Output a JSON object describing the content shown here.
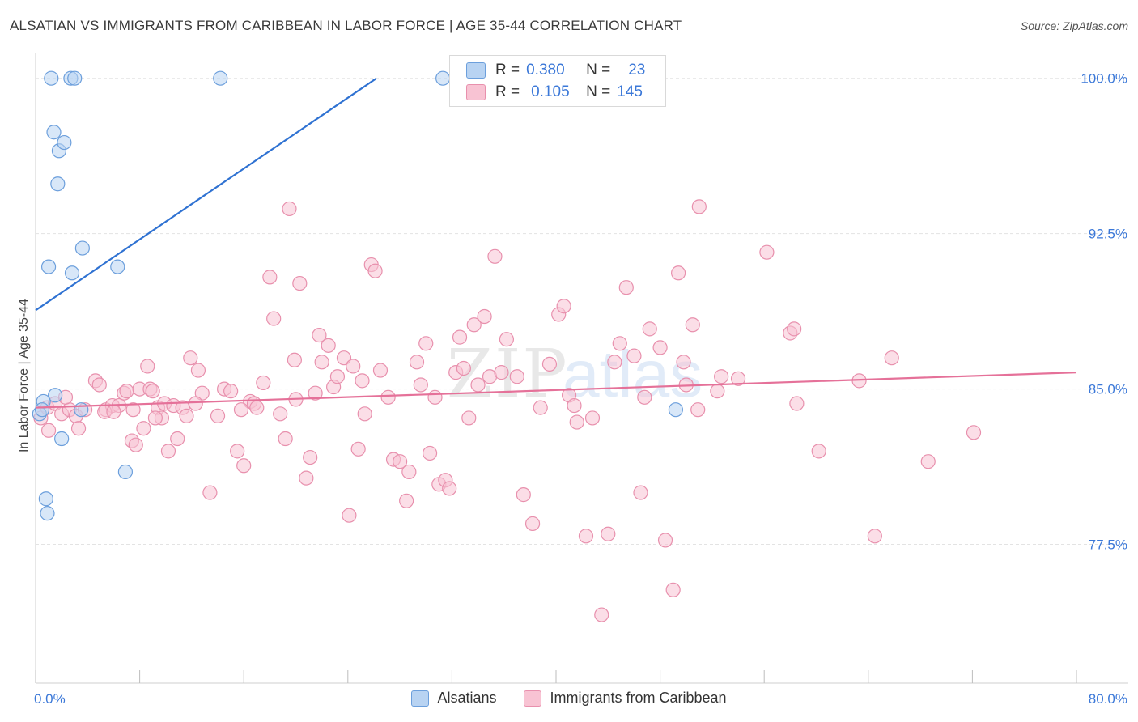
{
  "title": "ALSATIAN VS IMMIGRANTS FROM CARIBBEAN IN LABOR FORCE | AGE 35-44 CORRELATION CHART",
  "source": "Source: ZipAtlas.com",
  "watermark": {
    "zip": "ZIP",
    "atlas": "atlas"
  },
  "legend": {
    "r_label": "R =",
    "n_label": "N =",
    "rows": [
      {
        "r": "0.380",
        "n": "23"
      },
      {
        "r": "0.105",
        "n": "145"
      }
    ]
  },
  "colors": {
    "blue_fill": "#b8d3f2",
    "blue_stroke": "#6c9fdc",
    "blue_line": "#2f72d2",
    "pink_fill": "#f8c3d3",
    "pink_stroke": "#e890ad",
    "pink_line": "#e57199",
    "tick_text": "#3b78d8",
    "grid": "#e3e3e3"
  },
  "chart_data": {
    "type": "scatter",
    "title": "ALSATIAN VS IMMIGRANTS FROM CARIBBEAN IN LABOR FORCE | AGE 35-44 CORRELATION CHART",
    "xlabel": "",
    "ylabel": "In Labor Force | Age 35-44",
    "xlim": [
      0,
      80
    ],
    "ylim": [
      70.8,
      101.2
    ],
    "x_tick_labels": [
      {
        "value": 0,
        "label": "0.0%"
      },
      {
        "value": 80,
        "label": "80.0%"
      }
    ],
    "x_minor_ticks": [
      0,
      8,
      16,
      24,
      32,
      40,
      48,
      56,
      64,
      72,
      80
    ],
    "y_ticks": [
      {
        "value": 100.0,
        "label": "100.0%"
      },
      {
        "value": 92.5,
        "label": "92.5%"
      },
      {
        "value": 85.0,
        "label": "85.0%"
      },
      {
        "value": 77.5,
        "label": "77.5%"
      }
    ],
    "series": [
      {
        "name": "Alsatians",
        "R": 0.38,
        "N": 23,
        "trend": {
          "x": [
            0,
            26.2
          ],
          "y": [
            88.8,
            100.0
          ]
        },
        "points": [
          [
            1.2,
            100.0
          ],
          [
            2.7,
            100.0
          ],
          [
            3.0,
            100.0
          ],
          [
            14.2,
            100.0
          ],
          [
            31.3,
            100.0
          ],
          [
            1.4,
            97.4
          ],
          [
            1.8,
            96.5
          ],
          [
            2.2,
            96.9
          ],
          [
            1.7,
            94.9
          ],
          [
            3.6,
            91.8
          ],
          [
            1.0,
            90.9
          ],
          [
            2.8,
            90.6
          ],
          [
            6.3,
            90.9
          ],
          [
            1.5,
            84.7
          ],
          [
            0.6,
            84.4
          ],
          [
            0.3,
            83.8
          ],
          [
            0.5,
            84.0
          ],
          [
            3.5,
            84.0
          ],
          [
            2.0,
            82.6
          ],
          [
            6.9,
            81.0
          ],
          [
            0.8,
            79.7
          ],
          [
            0.9,
            79.0
          ],
          [
            49.2,
            84.0
          ]
        ]
      },
      {
        "name": "Immigrants from Caribbean",
        "R": 0.105,
        "N": 145,
        "trend": {
          "x": [
            0,
            80
          ],
          "y": [
            84.1,
            85.8
          ]
        },
        "points": [
          [
            0.4,
            83.6
          ],
          [
            0.9,
            84.1
          ],
          [
            1.5,
            84.3
          ],
          [
            2.0,
            83.8
          ],
          [
            2.6,
            84.0
          ],
          [
            3.1,
            83.7
          ],
          [
            3.8,
            84.0
          ],
          [
            4.6,
            85.4
          ],
          [
            4.9,
            85.2
          ],
          [
            5.4,
            84.0
          ],
          [
            5.9,
            84.2
          ],
          [
            6.4,
            84.2
          ],
          [
            6.8,
            84.8
          ],
          [
            7.0,
            84.9
          ],
          [
            7.4,
            82.5
          ],
          [
            7.5,
            84.0
          ],
          [
            7.7,
            82.3
          ],
          [
            8.0,
            85.0
          ],
          [
            8.3,
            83.1
          ],
          [
            8.6,
            86.1
          ],
          [
            8.8,
            85.0
          ],
          [
            9.0,
            84.9
          ],
          [
            9.4,
            84.1
          ],
          [
            9.7,
            83.6
          ],
          [
            9.9,
            84.3
          ],
          [
            10.2,
            82.0
          ],
          [
            10.6,
            84.2
          ],
          [
            10.9,
            82.6
          ],
          [
            11.3,
            84.1
          ],
          [
            11.6,
            83.7
          ],
          [
            11.9,
            86.5
          ],
          [
            12.5,
            85.9
          ],
          [
            12.8,
            84.8
          ],
          [
            13.4,
            80.0
          ],
          [
            14.0,
            83.7
          ],
          [
            14.5,
            85.0
          ],
          [
            15.0,
            84.9
          ],
          [
            15.5,
            82.0
          ],
          [
            16.0,
            81.3
          ],
          [
            16.5,
            84.4
          ],
          [
            16.8,
            84.3
          ],
          [
            17.0,
            84.1
          ],
          [
            17.5,
            85.3
          ],
          [
            18.0,
            90.4
          ],
          [
            18.3,
            88.4
          ],
          [
            18.8,
            83.8
          ],
          [
            19.2,
            82.6
          ],
          [
            19.5,
            93.7
          ],
          [
            19.9,
            86.4
          ],
          [
            20.3,
            90.1
          ],
          [
            20.8,
            80.7
          ],
          [
            21.1,
            81.7
          ],
          [
            21.5,
            84.8
          ],
          [
            21.8,
            87.6
          ],
          [
            22.0,
            86.3
          ],
          [
            22.5,
            87.1
          ],
          [
            22.9,
            85.1
          ],
          [
            23.2,
            85.6
          ],
          [
            23.7,
            86.5
          ],
          [
            24.1,
            78.9
          ],
          [
            24.4,
            86.1
          ],
          [
            24.8,
            82.1
          ],
          [
            25.1,
            85.4
          ],
          [
            25.3,
            83.8
          ],
          [
            25.8,
            91.0
          ],
          [
            26.1,
            90.7
          ],
          [
            26.5,
            85.9
          ],
          [
            27.1,
            84.6
          ],
          [
            27.5,
            81.6
          ],
          [
            28.0,
            81.5
          ],
          [
            28.5,
            79.6
          ],
          [
            28.7,
            81.0
          ],
          [
            29.3,
            86.3
          ],
          [
            29.6,
            85.2
          ],
          [
            30.0,
            87.2
          ],
          [
            30.3,
            81.9
          ],
          [
            30.7,
            84.6
          ],
          [
            31.0,
            80.4
          ],
          [
            31.5,
            80.6
          ],
          [
            31.8,
            80.2
          ],
          [
            32.3,
            85.8
          ],
          [
            32.6,
            87.5
          ],
          [
            32.9,
            86.0
          ],
          [
            33.3,
            83.6
          ],
          [
            33.7,
            88.1
          ],
          [
            34.0,
            85.2
          ],
          [
            34.5,
            88.5
          ],
          [
            34.9,
            85.6
          ],
          [
            35.3,
            91.4
          ],
          [
            35.8,
            85.8
          ],
          [
            36.2,
            87.4
          ],
          [
            37.0,
            85.6
          ],
          [
            37.5,
            79.9
          ],
          [
            38.2,
            78.5
          ],
          [
            38.8,
            84.1
          ],
          [
            39.5,
            86.2
          ],
          [
            40.2,
            88.6
          ],
          [
            40.6,
            89.0
          ],
          [
            41.0,
            84.7
          ],
          [
            41.4,
            84.2
          ],
          [
            41.6,
            83.4
          ],
          [
            42.3,
            77.9
          ],
          [
            42.8,
            83.6
          ],
          [
            43.5,
            74.1
          ],
          [
            44.0,
            78.0
          ],
          [
            44.5,
            86.3
          ],
          [
            44.9,
            87.2
          ],
          [
            45.4,
            89.9
          ],
          [
            46.0,
            86.6
          ],
          [
            46.5,
            80.0
          ],
          [
            46.8,
            84.6
          ],
          [
            47.2,
            87.9
          ],
          [
            48.0,
            87.0
          ],
          [
            48.4,
            77.7
          ],
          [
            49.0,
            75.3
          ],
          [
            49.4,
            90.6
          ],
          [
            49.8,
            86.3
          ],
          [
            50.0,
            85.2
          ],
          [
            50.5,
            88.1
          ],
          [
            50.9,
            84.0
          ],
          [
            51.0,
            93.8
          ],
          [
            52.4,
            84.9
          ],
          [
            52.7,
            85.6
          ],
          [
            54.0,
            85.5
          ],
          [
            56.2,
            91.6
          ],
          [
            58.0,
            87.7
          ],
          [
            58.3,
            87.9
          ],
          [
            58.5,
            84.3
          ],
          [
            60.2,
            82.0
          ],
          [
            63.3,
            85.4
          ],
          [
            64.5,
            77.9
          ],
          [
            65.8,
            86.5
          ],
          [
            68.6,
            81.5
          ],
          [
            72.1,
            82.9
          ],
          [
            1.0,
            83.0
          ],
          [
            2.3,
            84.6
          ],
          [
            3.3,
            83.1
          ],
          [
            5.3,
            83.9
          ],
          [
            6.0,
            83.9
          ],
          [
            9.2,
            83.6
          ],
          [
            12.3,
            84.3
          ],
          [
            15.8,
            84.0
          ],
          [
            20.0,
            84.5
          ]
        ]
      }
    ]
  },
  "axis": {
    "y_label": "In Labor Force | Age 35-44"
  },
  "x_labels": {
    "left": "0.0%",
    "right": "80.0%"
  },
  "bottom_legend": [
    "Alsatians",
    "Immigrants from Caribbean"
  ]
}
